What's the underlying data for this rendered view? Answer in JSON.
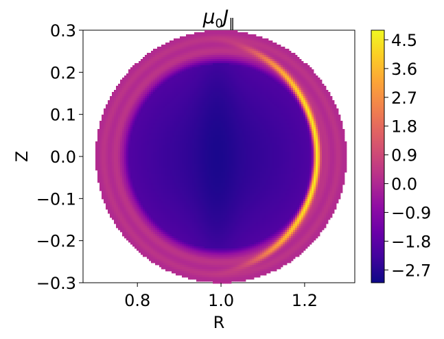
{
  "chart_data": {
    "type": "heatmap",
    "title": "μ0J∥",
    "title_parts": {
      "symbol": "μ",
      "symbol_sub": "0",
      "variable": "J",
      "variable_sub": "∥"
    },
    "xlabel": "R",
    "ylabel": "Z",
    "xlim": [
      0.67,
      1.32
    ],
    "ylim": [
      -0.3,
      0.3
    ],
    "xticks": [
      0.8,
      1.0,
      1.2
    ],
    "xtick_labels": [
      "0.8",
      "1.0",
      "1.2"
    ],
    "yticks": [
      -0.3,
      -0.2,
      -0.1,
      0.0,
      0.1,
      0.2,
      0.3
    ],
    "ytick_labels": [
      "−0.3",
      "−0.2",
      "−0.1",
      "0.0",
      "0.1",
      "0.2",
      "0.3"
    ],
    "colormap": "plasma",
    "grid": false,
    "colorbar": {
      "vmin": -3.1,
      "vmax": 4.8,
      "ticks": [
        -2.7,
        -1.8,
        -0.9,
        0.0,
        0.9,
        1.8,
        2.7,
        3.6,
        4.5
      ],
      "tick_labels": [
        "−2.7",
        "−1.8",
        "−0.9",
        "0.0",
        "0.9",
        "1.8",
        "2.7",
        "3.6",
        "4.5"
      ]
    },
    "field": {
      "domain": "circle",
      "center": [
        1.0,
        0.0
      ],
      "radius": 0.3,
      "regions": [
        {
          "name": "edge",
          "r_min": 0.245,
          "r_max": 0.3,
          "value": 0.2
        },
        {
          "name": "core",
          "r_min": 0.0,
          "r_max": 0.22,
          "value": -2.0,
          "center_value": -2.6
        },
        {
          "name": "current-sheet",
          "center": [
            0.95,
            0.0
          ],
          "radius": 0.28,
          "peak_value": 4.5,
          "peak_angle_deg": 0
        }
      ]
    }
  }
}
